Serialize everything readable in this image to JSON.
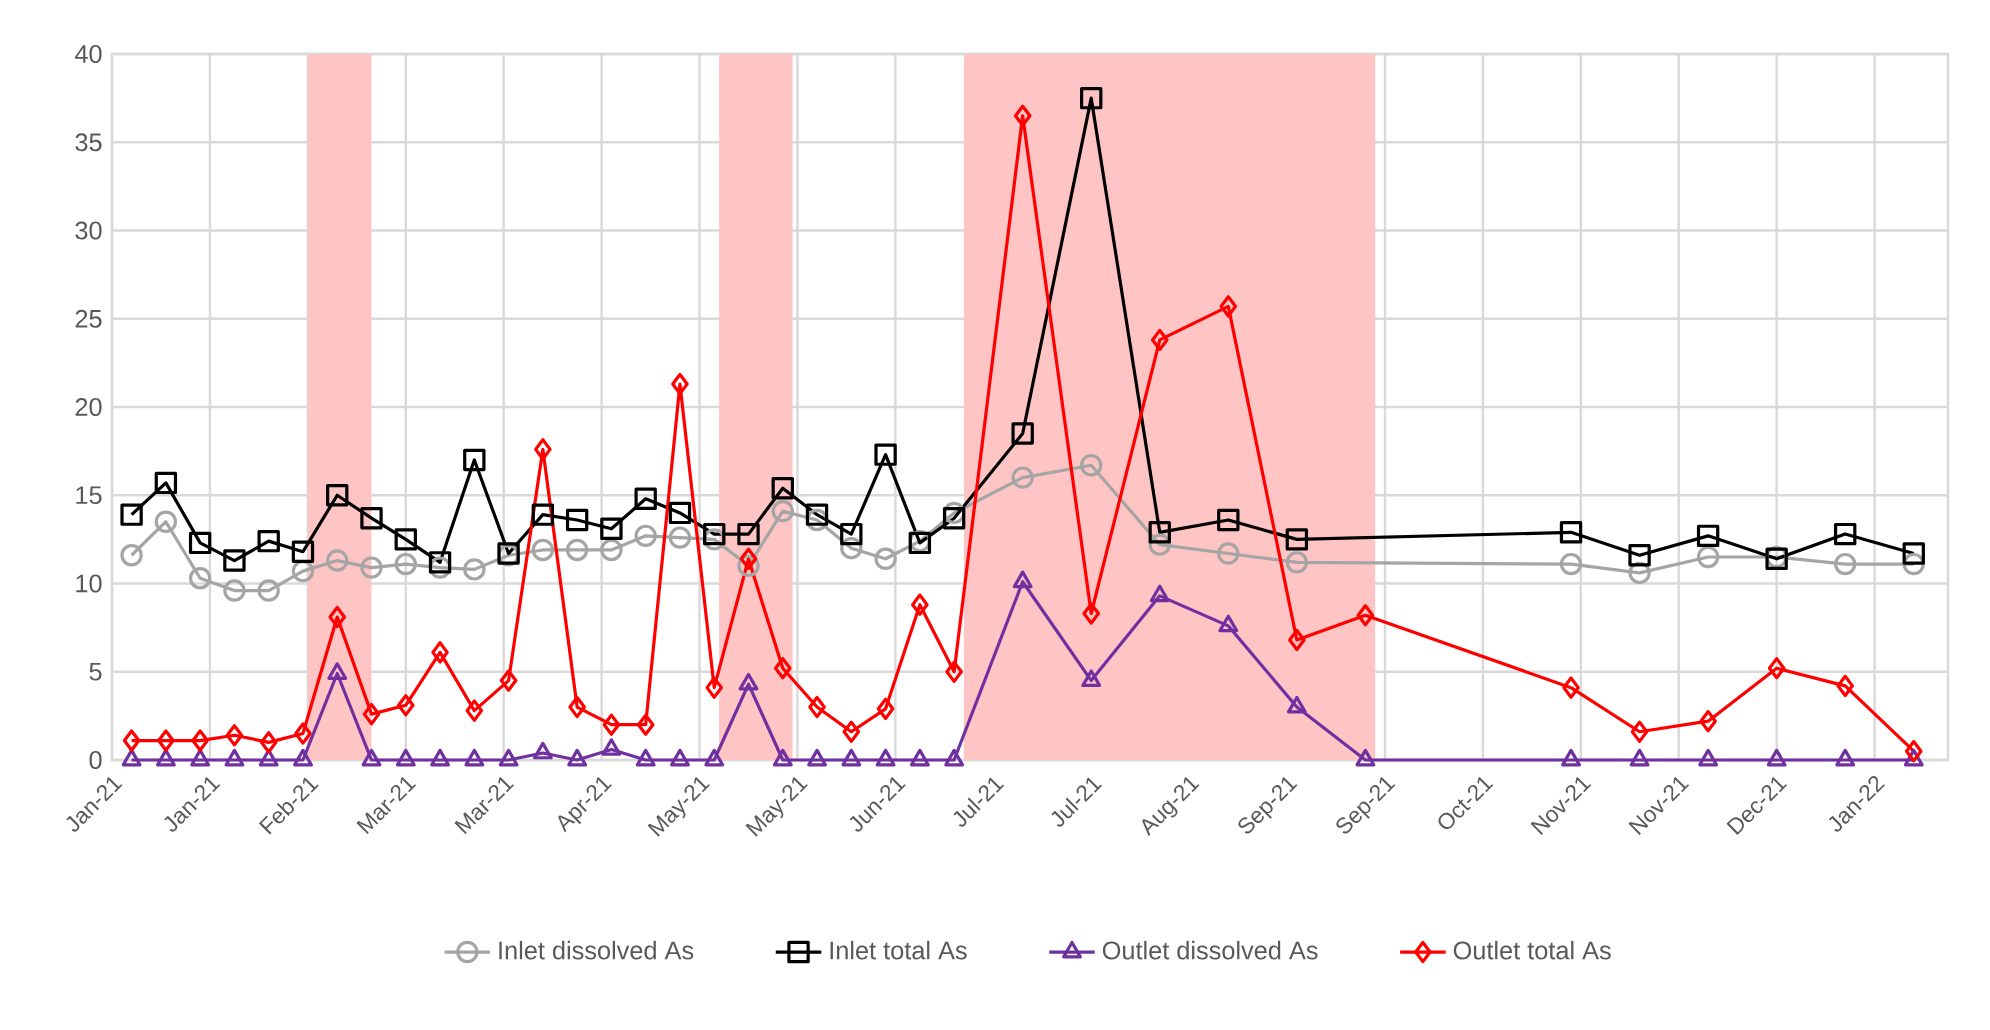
{
  "chart_data": {
    "type": "line",
    "x": [
      "2021-01-14",
      "2021-01-21",
      "2021-01-28",
      "2021-02-04",
      "2021-02-11",
      "2021-02-18",
      "2021-02-25",
      "2021-03-04",
      "2021-03-11",
      "2021-03-18",
      "2021-03-25",
      "2021-04-01",
      "2021-04-08",
      "2021-04-15",
      "2021-04-22",
      "2021-04-29",
      "2021-05-06",
      "2021-05-13",
      "2021-05-20",
      "2021-05-27",
      "2021-06-03",
      "2021-06-10",
      "2021-06-17",
      "2021-06-24",
      "2021-07-01",
      "2021-07-15",
      "2021-07-29",
      "2021-08-12",
      "2021-08-26",
      "2021-09-09",
      "2021-09-23",
      "2021-11-04",
      "2021-11-18",
      "2021-12-02",
      "2021-12-16",
      "2021-12-30",
      "2022-01-13"
    ],
    "series": [
      {
        "name": "Inlet dissolved As",
        "color": "#a5a5a5",
        "marker": "circle",
        "x": [
          "2021-01-14",
          "2021-01-21",
          "2021-01-28",
          "2021-02-04",
          "2021-02-11",
          "2021-02-18",
          "2021-02-25",
          "2021-03-04",
          "2021-03-11",
          "2021-03-18",
          "2021-03-25",
          "2021-04-01",
          "2021-04-08",
          "2021-04-15",
          "2021-04-22",
          "2021-04-29",
          "2021-05-06",
          "2021-05-13",
          "2021-05-20",
          "2021-05-27",
          "2021-06-03",
          "2021-06-10",
          "2021-06-17",
          "2021-06-24",
          "2021-07-01",
          "2021-07-15",
          "2021-07-29",
          "2021-08-12",
          "2021-08-26",
          "2021-09-09",
          "2021-11-04",
          "2021-11-18",
          "2021-12-02",
          "2021-12-16",
          "2021-12-30",
          "2022-01-13"
        ],
        "values": [
          11.6,
          13.5,
          10.3,
          9.6,
          9.6,
          10.7,
          11.3,
          10.9,
          11.1,
          10.9,
          10.8,
          11.6,
          11.9,
          11.9,
          11.9,
          12.7,
          12.6,
          12.5,
          11.0,
          14.1,
          13.6,
          12.0,
          11.4,
          12.4,
          14.0,
          16.0,
          16.7,
          12.2,
          11.7,
          11.2,
          11.1,
          10.6,
          11.5,
          11.5,
          11.1,
          11.1
        ]
      },
      {
        "name": "Inlet total As",
        "color": "#000000",
        "marker": "square",
        "x": [
          "2021-01-14",
          "2021-01-21",
          "2021-01-28",
          "2021-02-04",
          "2021-02-11",
          "2021-02-18",
          "2021-02-25",
          "2021-03-04",
          "2021-03-11",
          "2021-03-18",
          "2021-03-25",
          "2021-04-01",
          "2021-04-08",
          "2021-04-15",
          "2021-04-22",
          "2021-04-29",
          "2021-05-06",
          "2021-05-13",
          "2021-05-20",
          "2021-05-27",
          "2021-06-03",
          "2021-06-10",
          "2021-06-17",
          "2021-06-24",
          "2021-07-01",
          "2021-07-15",
          "2021-07-29",
          "2021-08-12",
          "2021-08-26",
          "2021-09-09",
          "2021-11-04",
          "2021-11-18",
          "2021-12-02",
          "2021-12-16",
          "2021-12-30",
          "2022-01-13"
        ],
        "values": [
          13.9,
          15.7,
          12.3,
          11.3,
          12.4,
          11.8,
          15.0,
          13.7,
          12.5,
          11.2,
          17.0,
          11.7,
          13.9,
          13.6,
          13.1,
          14.8,
          14.0,
          12.8,
          12.8,
          15.4,
          13.9,
          12.8,
          17.3,
          12.3,
          13.7,
          18.5,
          37.5,
          12.9,
          13.6,
          12.5,
          12.9,
          11.6,
          12.7,
          11.4,
          12.8,
          11.7
        ]
      },
      {
        "name": "Outlet dissolved As",
        "color": "#7030a0",
        "marker": "triangle",
        "values": [
          0,
          0,
          0,
          0,
          0,
          0,
          4.9,
          0,
          0,
          0,
          0,
          0,
          0.4,
          0,
          0.6,
          0,
          0,
          0,
          4.3,
          0,
          0,
          0,
          0,
          0,
          0,
          10.1,
          4.5,
          9.3,
          7.6,
          3.0,
          0,
          0,
          0,
          0,
          0,
          0,
          0
        ]
      },
      {
        "name": "Outlet total As",
        "color": "#ff0000",
        "marker": "diamond",
        "values": [
          1.1,
          1.1,
          1.1,
          1.4,
          1.0,
          1.5,
          8.1,
          2.6,
          3.1,
          6.1,
          2.8,
          4.5,
          17.6,
          3.0,
          2.0,
          2.0,
          21.3,
          4.1,
          11.4,
          5.2,
          3.0,
          1.6,
          2.9,
          8.8,
          5.0,
          36.5,
          8.3,
          23.8,
          25.7,
          6.8,
          8.2,
          4.1,
          1.6,
          2.2,
          5.2,
          4.2,
          0.5
        ]
      }
    ],
    "bands": [
      {
        "axis": "x",
        "from": "2021-02-19",
        "to": "2021-03-04",
        "color": "#ffc4c4"
      },
      {
        "axis": "x",
        "from": "2021-05-14",
        "to": "2021-05-29",
        "color": "#ffc4c4"
      },
      {
        "axis": "x",
        "from": "2021-07-03",
        "to": "2021-09-25",
        "color": "#ffc4c4"
      }
    ],
    "xlim": [
      "2021-01-10",
      "2022-01-20"
    ],
    "xticks": [
      {
        "value": "2021-01-10",
        "label": "Jan-21"
      },
      {
        "value": "2021-01-30",
        "label": "Jan-21"
      },
      {
        "value": "2021-02-19",
        "label": "Feb-21"
      },
      {
        "value": "2021-03-11",
        "label": "Mar-21"
      },
      {
        "value": "2021-03-31",
        "label": "Mar-21"
      },
      {
        "value": "2021-04-20",
        "label": "Apr-21"
      },
      {
        "value": "2021-05-10",
        "label": "May-21"
      },
      {
        "value": "2021-05-30",
        "label": "May-21"
      },
      {
        "value": "2021-06-19",
        "label": "Jun-21"
      },
      {
        "value": "2021-07-09",
        "label": "Jul-21"
      },
      {
        "value": "2021-07-29",
        "label": "Jul-21"
      },
      {
        "value": "2021-08-18",
        "label": "Aug-21"
      },
      {
        "value": "2021-09-07",
        "label": "Sep-21"
      },
      {
        "value": "2021-09-27",
        "label": "Sep-21"
      },
      {
        "value": "2021-10-17",
        "label": "Oct-21"
      },
      {
        "value": "2021-11-06",
        "label": "Nov-21"
      },
      {
        "value": "2021-11-26",
        "label": "Nov-21"
      },
      {
        "value": "2021-12-16",
        "label": "Dec-21"
      },
      {
        "value": "2022-01-05",
        "label": "Jan-22"
      }
    ],
    "ylim": [
      0,
      40
    ],
    "yticks": [
      0,
      5,
      10,
      15,
      20,
      25,
      30,
      35,
      40
    ],
    "grid": true,
    "legend": "bottom",
    "line_style": "solid"
  }
}
